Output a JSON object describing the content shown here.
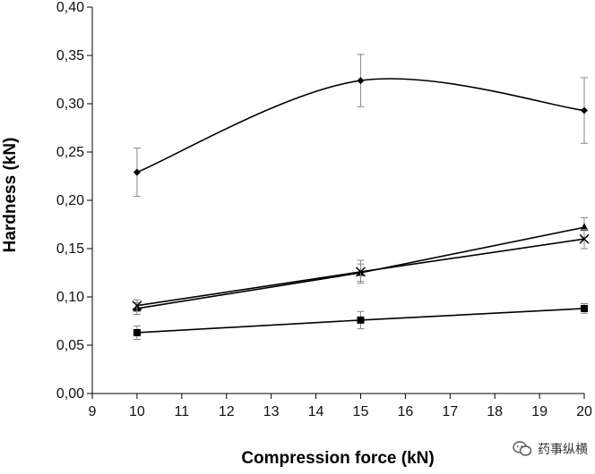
{
  "chart_data": {
    "type": "line",
    "title": "",
    "xlabel": "Compression force (kN)",
    "ylabel": "Hardness (kN)",
    "xlim": [
      9,
      20
    ],
    "ylim": [
      0,
      0.4
    ],
    "xticks": [
      "9",
      "10",
      "11",
      "12",
      "13",
      "14",
      "15",
      "16",
      "17",
      "18",
      "19",
      "20"
    ],
    "yticks": [
      "0,00",
      "0,05",
      "0,10",
      "0,15",
      "0,20",
      "0,25",
      "0,30",
      "0,35",
      "0,40"
    ],
    "grid": false,
    "series": [
      {
        "marker": "diamond",
        "smooth": true,
        "x": [
          10,
          15,
          20
        ],
        "y": [
          0.229,
          0.324,
          0.293
        ],
        "err": [
          0.025,
          0.027,
          0.034
        ]
      },
      {
        "marker": "triangle",
        "x": [
          10,
          15,
          20
        ],
        "y": [
          0.088,
          0.125,
          0.172
        ],
        "err": [
          0.006,
          0.009,
          0.01
        ]
      },
      {
        "marker": "x",
        "x": [
          10,
          15,
          20
        ],
        "y": [
          0.091,
          0.126,
          0.16
        ],
        "err": [
          0.006,
          0.012,
          0.01
        ]
      },
      {
        "marker": "square",
        "x": [
          10,
          15,
          20
        ],
        "y": [
          0.063,
          0.076,
          0.088
        ],
        "err": [
          0.007,
          0.009,
          0.005
        ]
      }
    ]
  },
  "watermark": {
    "text": "药事纵横",
    "icon": "wechat-icon"
  }
}
